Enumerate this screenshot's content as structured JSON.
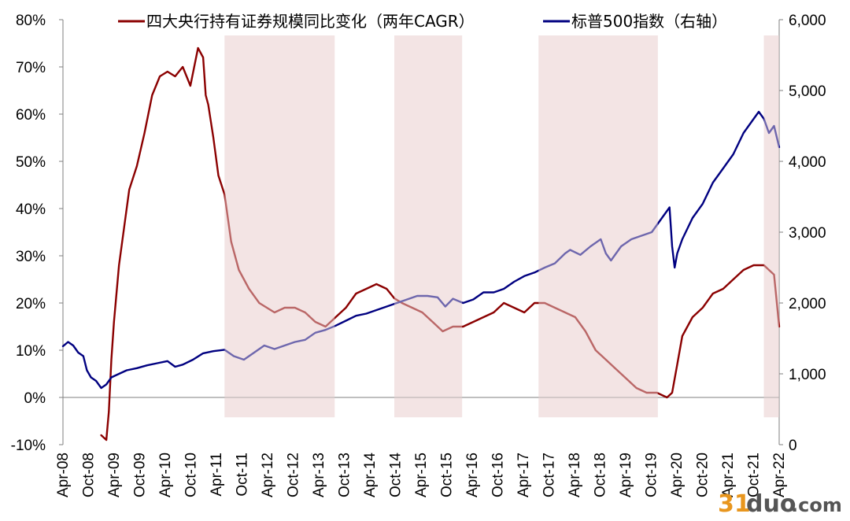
{
  "chart_data": {
    "type": "line",
    "title": "",
    "legend": {
      "placement": "top",
      "items": [
        {
          "name": "四大央行持有证券规模同比变化（两年CAGR）",
          "color": "#8B0000"
        },
        {
          "name": "标普500指数（右轴）",
          "color": "#000080"
        }
      ]
    },
    "x_tick_labels": [
      "Apr-08",
      "Oct-08",
      "Apr-09",
      "Oct-09",
      "Apr-10",
      "Oct-10",
      "Apr-11",
      "Oct-11",
      "Apr-12",
      "Oct-12",
      "Apr-13",
      "Oct-13",
      "Apr-14",
      "Oct-14",
      "Apr-15",
      "Oct-15",
      "Apr-16",
      "Oct-16",
      "Apr-17",
      "Oct-17",
      "Apr-18",
      "Oct-18",
      "Apr-19",
      "Oct-19",
      "Apr-20",
      "Oct-20",
      "Apr-21",
      "Oct-21",
      "Apr-22"
    ],
    "x_range": [
      2008.25,
      2022.3
    ],
    "y_left": {
      "ticks": [
        -10,
        0,
        10,
        20,
        30,
        40,
        50,
        60,
        70,
        80
      ],
      "tick_labels": [
        "-10%",
        "0%",
        "10%",
        "20%",
        "30%",
        "40%",
        "50%",
        "60%",
        "70%",
        "80%"
      ],
      "negative_color": "#FF0000",
      "range": [
        -10,
        80
      ]
    },
    "y_right": {
      "ticks": [
        0,
        1000,
        2000,
        3000,
        4000,
        5000,
        6000
      ],
      "tick_labels": [
        "0",
        "1,000",
        "2,000",
        "3,000",
        "4,000",
        "5,000",
        "6,000"
      ],
      "range": [
        0,
        6000
      ]
    },
    "shaded_periods": [
      {
        "start": 2011.42,
        "end": 2013.58
      },
      {
        "start": 2014.75,
        "end": 2016.08
      },
      {
        "start": 2017.58,
        "end": 2019.92
      },
      {
        "start": 2022.0,
        "end": 2022.3
      }
    ],
    "series": [
      {
        "name": "四大央行持有证券规模同比变化（两年CAGR）",
        "axis": "left",
        "color": "#8B0000",
        "x": [
          2009.0,
          2009.1,
          2009.15,
          2009.2,
          2009.25,
          2009.35,
          2009.45,
          2009.55,
          2009.7,
          2009.85,
          2010.0,
          2010.15,
          2010.3,
          2010.45,
          2010.6,
          2010.75,
          2010.9,
          2011.0,
          2011.05,
          2011.1,
          2011.2,
          2011.3,
          2011.42,
          2011.55,
          2011.7,
          2011.9,
          2012.1,
          2012.4,
          2012.6,
          2012.8,
          2013.0,
          2013.2,
          2013.4,
          2013.6,
          2013.8,
          2014.0,
          2014.2,
          2014.4,
          2014.6,
          2014.75,
          2014.9,
          2015.1,
          2015.3,
          2015.5,
          2015.7,
          2015.9,
          2016.1,
          2016.3,
          2016.5,
          2016.7,
          2016.9,
          2017.1,
          2017.3,
          2017.5,
          2017.7,
          2017.9,
          2018.1,
          2018.3,
          2018.5,
          2018.7,
          2018.9,
          2019.1,
          2019.3,
          2019.5,
          2019.7,
          2019.9,
          2020.1,
          2020.2,
          2020.3,
          2020.4,
          2020.6,
          2020.8,
          2021.0,
          2021.2,
          2021.4,
          2021.6,
          2021.8,
          2022.0,
          2022.1,
          2022.2,
          2022.3
        ],
        "y": [
          -8,
          -9,
          -3,
          8,
          16,
          28,
          36,
          44,
          49,
          56,
          64,
          68,
          69,
          68,
          70,
          66,
          74,
          72,
          64,
          62,
          55,
          47,
          43,
          33,
          27,
          23,
          20,
          18,
          19,
          19,
          18,
          16,
          15,
          17,
          19,
          22,
          23,
          24,
          23,
          21,
          20,
          19,
          18,
          16,
          14,
          15,
          15,
          16,
          17,
          18,
          20,
          19,
          18,
          20,
          20,
          19,
          18,
          17,
          14,
          10,
          8,
          6,
          4,
          2,
          1,
          1,
          0,
          1,
          7,
          13,
          17,
          19,
          22,
          23,
          25,
          27,
          28,
          28,
          27,
          26,
          15
        ]
      },
      {
        "name": "标普500指数（右轴）",
        "axis": "right",
        "color": "#000080",
        "x": [
          2008.25,
          2008.35,
          2008.45,
          2008.55,
          2008.65,
          2008.72,
          2008.8,
          2008.9,
          2009.0,
          2009.1,
          2009.2,
          2009.35,
          2009.5,
          2009.7,
          2009.9,
          2010.1,
          2010.3,
          2010.45,
          2010.6,
          2010.8,
          2011.0,
          2011.2,
          2011.42,
          2011.6,
          2011.8,
          2012.0,
          2012.2,
          2012.4,
          2012.6,
          2012.8,
          2013.0,
          2013.2,
          2013.4,
          2013.6,
          2013.8,
          2014.0,
          2014.2,
          2014.4,
          2014.6,
          2014.8,
          2015.0,
          2015.2,
          2015.4,
          2015.6,
          2015.75,
          2015.9,
          2016.1,
          2016.3,
          2016.5,
          2016.7,
          2016.9,
          2017.1,
          2017.3,
          2017.5,
          2017.7,
          2017.9,
          2018.1,
          2018.2,
          2018.4,
          2018.6,
          2018.8,
          2018.9,
          2019.0,
          2019.2,
          2019.4,
          2019.6,
          2019.8,
          2020.0,
          2020.1,
          2020.15,
          2020.2,
          2020.25,
          2020.3,
          2020.4,
          2020.6,
          2020.8,
          2021.0,
          2021.2,
          2021.4,
          2021.6,
          2021.8,
          2021.9,
          2022.0,
          2022.1,
          2022.2,
          2022.3
        ],
        "y": [
          1390,
          1450,
          1400,
          1300,
          1250,
          1050,
          950,
          900,
          800,
          850,
          950,
          1000,
          1050,
          1080,
          1120,
          1150,
          1180,
          1100,
          1130,
          1200,
          1290,
          1320,
          1340,
          1250,
          1200,
          1300,
          1400,
          1350,
          1400,
          1450,
          1480,
          1580,
          1620,
          1680,
          1750,
          1820,
          1850,
          1900,
          1950,
          2000,
          2050,
          2100,
          2100,
          2080,
          1950,
          2060,
          2000,
          2050,
          2150,
          2150,
          2200,
          2300,
          2380,
          2430,
          2500,
          2560,
          2700,
          2750,
          2680,
          2800,
          2900,
          2700,
          2600,
          2800,
          2900,
          2950,
          3000,
          3200,
          3300,
          3350,
          2800,
          2500,
          2700,
          2900,
          3200,
          3400,
          3700,
          3900,
          4100,
          4400,
          4600,
          4700,
          4600,
          4400,
          4500,
          4200
        ]
      }
    ]
  },
  "watermark": {
    "prefix": "31",
    "suffix": "duo",
    "tld": ".com"
  }
}
